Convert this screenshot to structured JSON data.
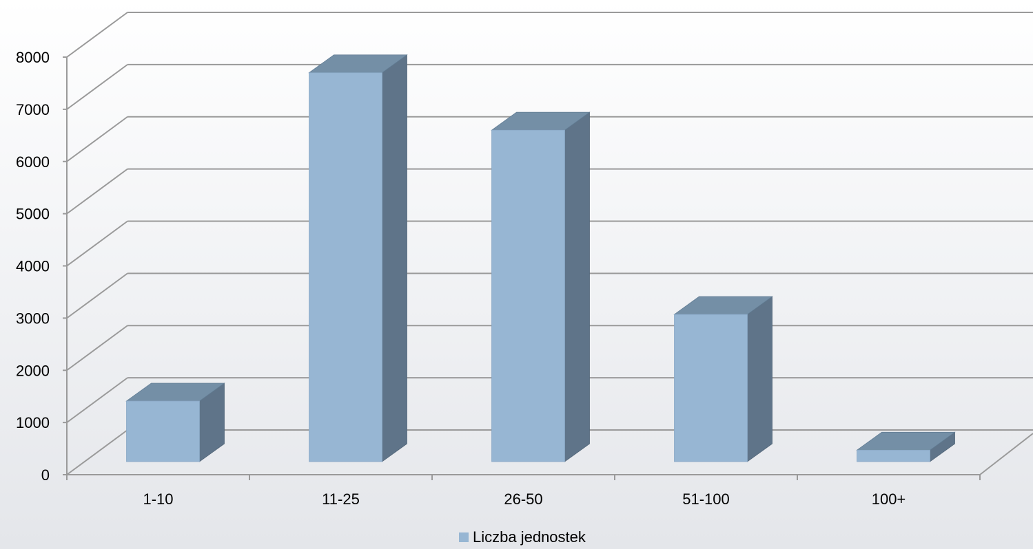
{
  "chart_data": {
    "type": "bar",
    "categories": [
      "1-10",
      "11-25",
      "26-50",
      "51-100",
      "100+"
    ],
    "series": [
      {
        "name": "Liczba jednostek",
        "values": [
          1160,
          7450,
          6350,
          2820,
          220
        ],
        "color": "#97b6d3"
      }
    ],
    "ylim": [
      0,
      8000
    ],
    "yticks": [
      0,
      1000,
      2000,
      3000,
      4000,
      5000,
      6000,
      7000,
      8000
    ],
    "grid": true,
    "style": "3d-column",
    "legend_position": "bottom",
    "colors": {
      "bar_front": "#97b6d3",
      "bar_side": "#5f7489",
      "bar_top": "#748fa6",
      "grid": "#9a9a9a"
    }
  }
}
